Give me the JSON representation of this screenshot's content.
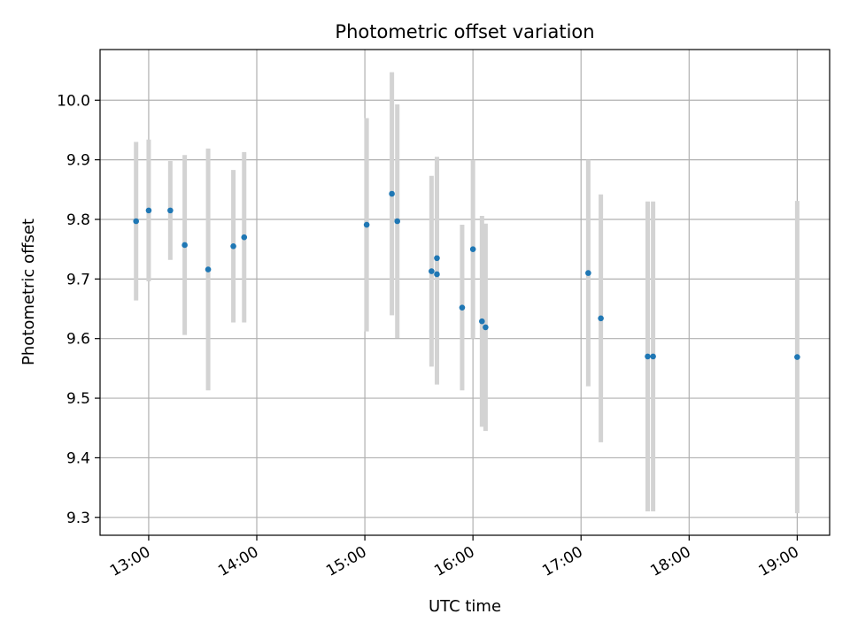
{
  "chart_data": {
    "type": "scatter",
    "title": "Photometric offset variation",
    "xlabel": "UTC time",
    "ylabel": "Photometric offset",
    "x_ticks": [
      "13:00",
      "14:00",
      "15:00",
      "16:00",
      "17:00",
      "18:00",
      "19:00"
    ],
    "y_ticks": [
      "9.3",
      "9.4",
      "9.5",
      "9.6",
      "9.7",
      "9.8",
      "9.9",
      "10.0"
    ],
    "xlim": [
      "12:33",
      "19:18"
    ],
    "ylim": [
      9.27,
      10.085
    ],
    "grid": true,
    "legend": "none",
    "point_color": "#1f77b4",
    "errorbar_color": "#d3d3d3",
    "points": [
      {
        "x": "12:53",
        "y": 9.797,
        "err": 0.133
      },
      {
        "x": "13:00",
        "y": 9.815,
        "err": 0.119
      },
      {
        "x": "13:12",
        "y": 9.815,
        "err": 0.083
      },
      {
        "x": "13:20",
        "y": 9.757,
        "err": 0.151
      },
      {
        "x": "13:33",
        "y": 9.716,
        "err": 0.203
      },
      {
        "x": "13:47",
        "y": 9.755,
        "err": 0.128
      },
      {
        "x": "13:53",
        "y": 9.77,
        "err": 0.143
      },
      {
        "x": "15:01",
        "y": 9.791,
        "err": 0.179
      },
      {
        "x": "15:15",
        "y": 9.843,
        "err": 0.204
      },
      {
        "x": "15:18",
        "y": 9.797,
        "err": 0.196
      },
      {
        "x": "15:37",
        "y": 9.713,
        "err": 0.16
      },
      {
        "x": "15:40",
        "y": 9.735,
        "err": 0.17
      },
      {
        "x": "15:40",
        "y": 9.708,
        "err": 0.185
      },
      {
        "x": "15:54",
        "y": 9.652,
        "err": 0.139
      },
      {
        "x": "16:00",
        "y": 9.75,
        "err": 0.15
      },
      {
        "x": "16:05",
        "y": 9.629,
        "err": 0.177
      },
      {
        "x": "16:07",
        "y": 9.619,
        "err": 0.174
      },
      {
        "x": "17:04",
        "y": 9.71,
        "err": 0.19
      },
      {
        "x": "17:11",
        "y": 9.634,
        "err": 0.208
      },
      {
        "x": "17:37",
        "y": 9.57,
        "err": 0.26
      },
      {
        "x": "17:40",
        "y": 9.57,
        "err": 0.26
      },
      {
        "x": "19:00",
        "y": 9.569,
        "err": 0.262
      }
    ]
  }
}
